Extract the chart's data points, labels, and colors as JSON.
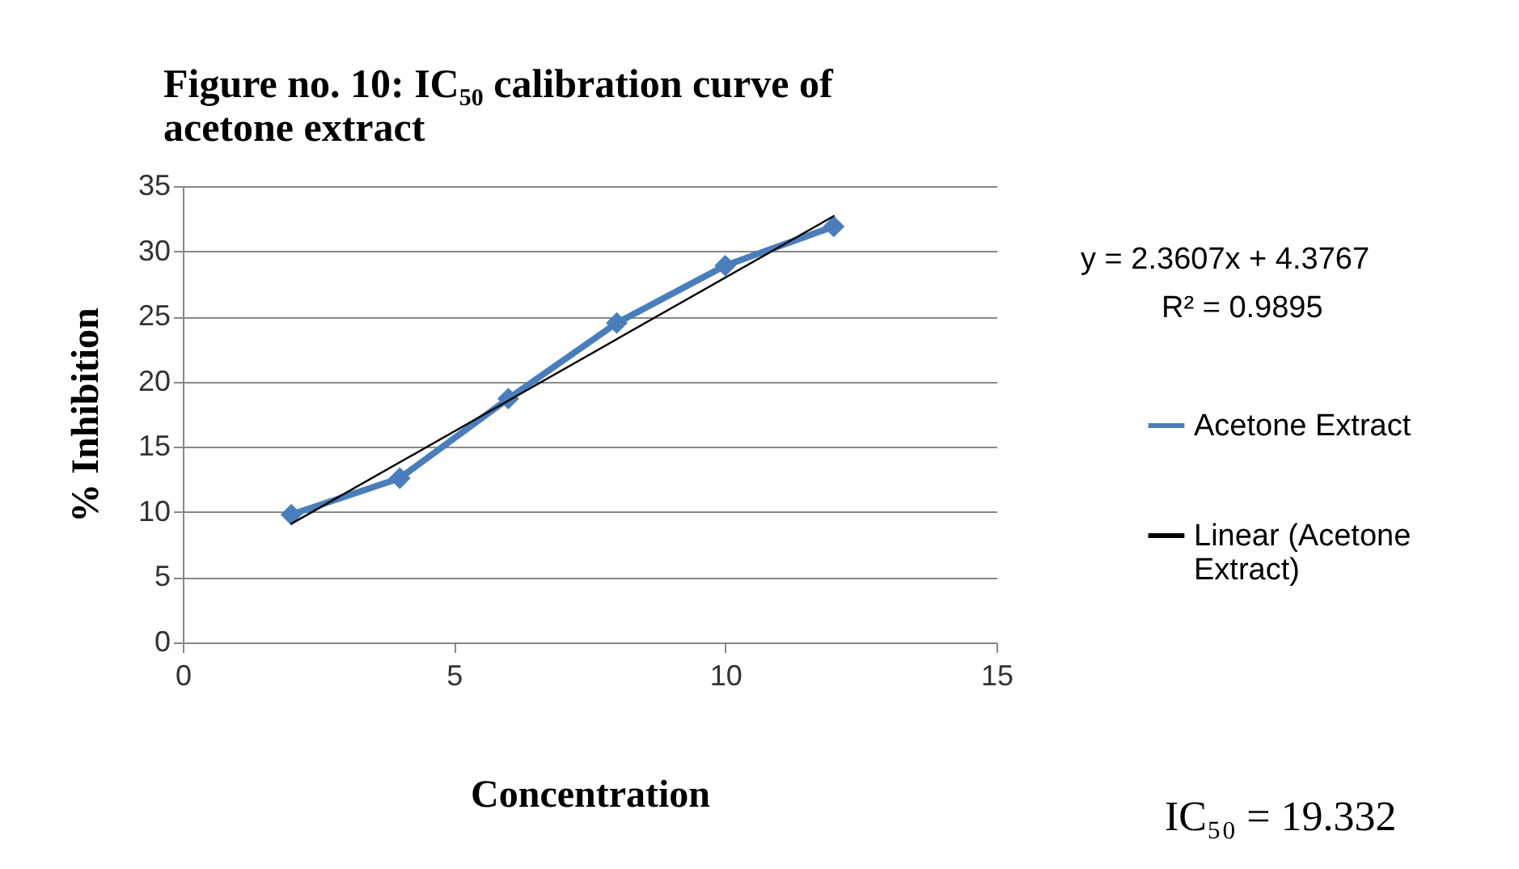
{
  "chart_data": {
    "type": "line",
    "title": "Figure no. 10: IC₅₀ calibration curve of acetone extract",
    "xlabel": "Concentration",
    "ylabel": "% Inhibition",
    "xlim": [
      0,
      15
    ],
    "xticks": [
      0,
      5,
      10,
      15
    ],
    "ylim": [
      0,
      35
    ],
    "yticks": [
      0,
      5,
      10,
      15,
      20,
      25,
      30,
      35
    ],
    "grid": "y",
    "legend": "right",
    "series": [
      {
        "name": "Acetone Extract",
        "color": "#4a7ebb",
        "marker": "diamond",
        "line_style": "solid",
        "x": [
          2,
          4,
          6,
          8,
          10,
          12
        ],
        "values": [
          9.8,
          12.6,
          18.7,
          24.5,
          28.9,
          31.9
        ]
      },
      {
        "name": "Linear (Acetone Extract)",
        "color": "#000000",
        "marker": "none",
        "line_style": "solid",
        "x": [
          2,
          12
        ],
        "values": [
          9.1,
          32.7
        ]
      }
    ],
    "tick_labels": "xy",
    "annotations": [
      "y = 2.3607x + 4.3767",
      "R² = 0.9895",
      "IC₅₀ = 19.332"
    ]
  }
}
